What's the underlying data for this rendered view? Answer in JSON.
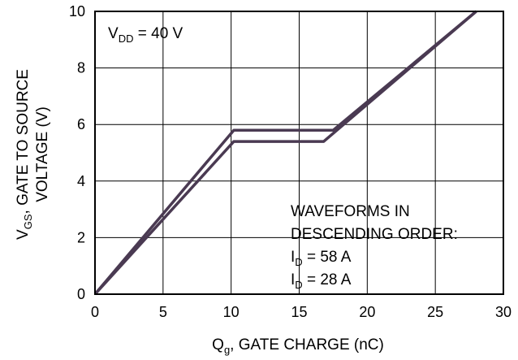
{
  "chart_data": {
    "type": "line",
    "xlabel": {
      "main": "Q",
      "sub": "g",
      "rest": ", GATE CHARGE (nC)"
    },
    "ylabel": {
      "main": "V",
      "sub": "GS",
      "rest": ", GATE TO SOURCE",
      "line2": "VOLTAGE (V)"
    },
    "xlim": [
      0,
      30
    ],
    "ylim": [
      0,
      10
    ],
    "xticks": [
      0,
      5,
      10,
      15,
      20,
      25,
      30
    ],
    "yticks": [
      0,
      2,
      4,
      6,
      8,
      10
    ],
    "grid": true,
    "annotation_vdd": {
      "main": "V",
      "sub": "DD",
      "rest": " = 40 V"
    },
    "legend": {
      "line1": "WAVEFORMS IN",
      "line2": "DESCENDING ORDER:",
      "entry1": {
        "main": "I",
        "sub": "D",
        "rest": " = 58 A"
      },
      "entry2": {
        "main": "I",
        "sub": "D",
        "rest": " = 28 A"
      }
    },
    "series": [
      {
        "points": [
          [
            0,
            0
          ],
          [
            10.2,
            5.8
          ],
          [
            17.5,
            5.8
          ],
          [
            28,
            10
          ]
        ],
        "color": "#4a3a52"
      },
      {
        "points": [
          [
            0,
            0
          ],
          [
            10.2,
            5.4
          ],
          [
            16.8,
            5.4
          ],
          [
            28,
            10
          ]
        ],
        "color": "#4a3a52"
      }
    ]
  }
}
